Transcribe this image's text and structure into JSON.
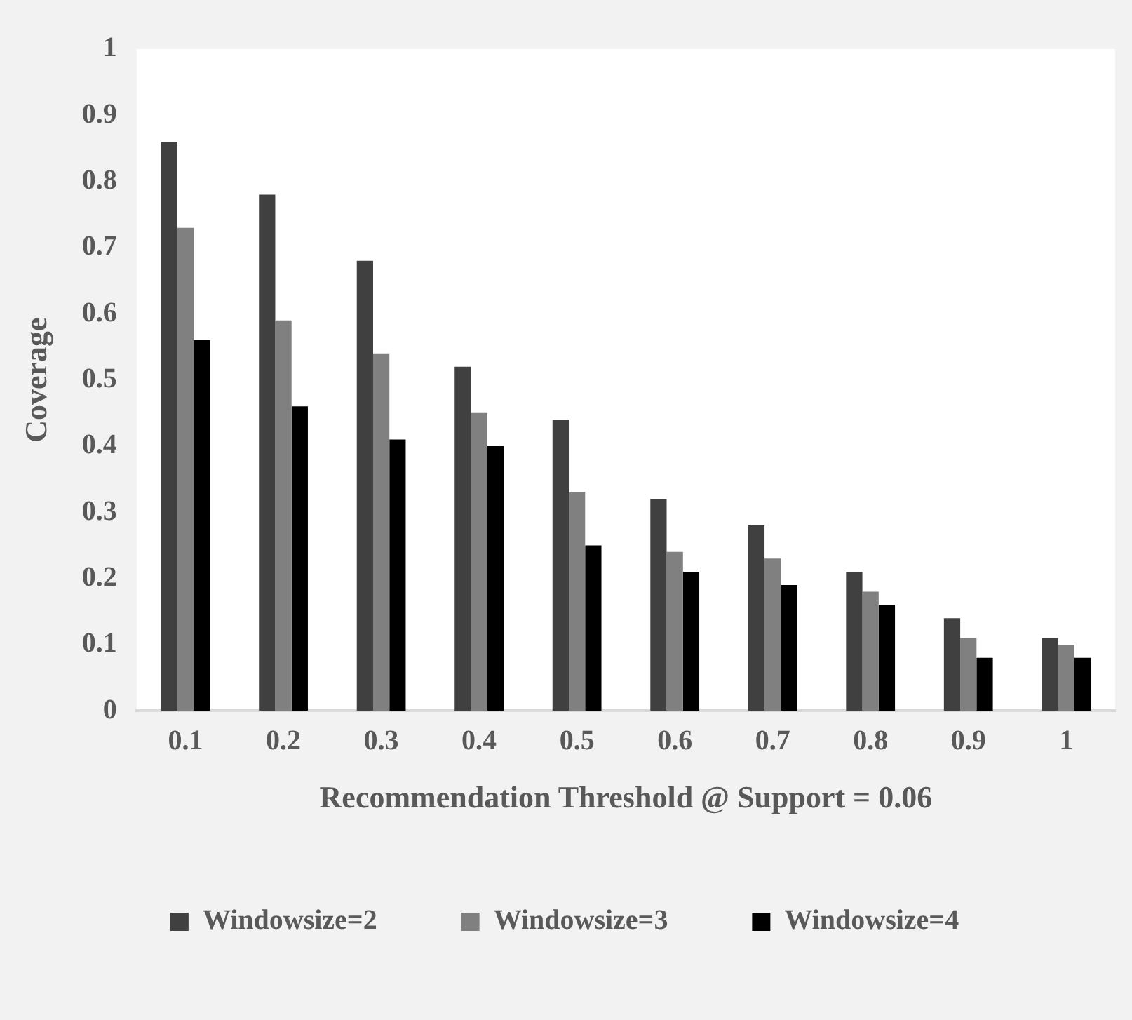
{
  "chart_data": {
    "type": "bar",
    "xlabel": "Recommendation Threshold @ Support = 0.06",
    "ylabel": "Coverage",
    "categories": [
      "0.1",
      "0.2",
      "0.3",
      "0.4",
      "0.5",
      "0.6",
      "0.7",
      "0.8",
      "0.9",
      "1"
    ],
    "series": [
      {
        "name": "Windowsize=2",
        "color": "#404040",
        "values": [
          0.86,
          0.78,
          0.68,
          0.52,
          0.44,
          0.32,
          0.28,
          0.21,
          0.14,
          0.11
        ]
      },
      {
        "name": "Windowsize=3",
        "color": "#808080",
        "values": [
          0.73,
          0.59,
          0.54,
          0.45,
          0.33,
          0.24,
          0.23,
          0.18,
          0.11,
          0.1
        ]
      },
      {
        "name": "Windowsize=4",
        "color": "#000000",
        "values": [
          0.56,
          0.46,
          0.41,
          0.4,
          0.25,
          0.21,
          0.19,
          0.16,
          0.08,
          0.08
        ]
      }
    ],
    "ylim": [
      0,
      1
    ],
    "yticks": [
      0,
      0.1,
      0.2,
      0.3,
      0.4,
      0.5,
      0.6,
      0.7,
      0.8,
      0.9,
      1
    ],
    "grid": false,
    "legend": "bottom"
  }
}
